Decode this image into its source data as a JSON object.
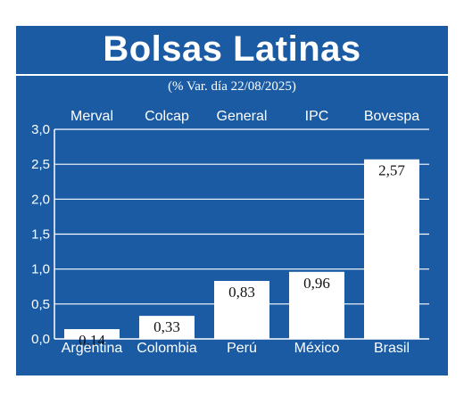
{
  "title": "Bolsas Latinas",
  "subtitle": "(% Var. día 22/08/2025)",
  "colors": {
    "panel": "#1a5ba4",
    "bar": "#ffffff",
    "text": "#ffffff",
    "value_label": "#111111"
  },
  "chart_data": {
    "type": "bar",
    "categories": [
      "Argentina",
      "Colombia",
      "Perú",
      "México",
      "Brasil"
    ],
    "index_names": [
      "Merval",
      "Colcap",
      "General",
      "IPC",
      "Bovespa"
    ],
    "values": [
      0.14,
      0.33,
      0.83,
      0.96,
      2.57
    ],
    "value_labels": [
      "0,14",
      "0,33",
      "0,83",
      "0,96",
      "2,57"
    ],
    "ylim": [
      0,
      3.0
    ],
    "yticks": [
      0,
      0.5,
      1.0,
      1.5,
      2.0,
      2.5,
      3.0
    ],
    "ytick_labels": [
      "0,0",
      "0,5",
      "1,0",
      "1,5",
      "2,0",
      "2,5",
      "3,0"
    ],
    "grid": true,
    "xlabel": "",
    "ylabel": ""
  }
}
